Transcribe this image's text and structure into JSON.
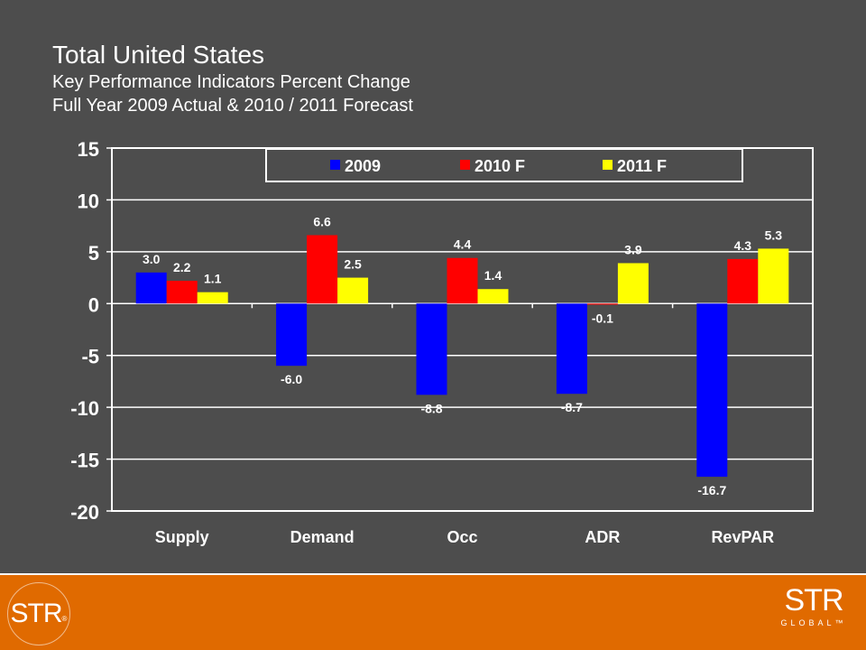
{
  "header": {
    "title": "Total United States",
    "subtitle_1": "Key Performance Indicators Percent Change",
    "subtitle_2": "Full Year 2009 Actual & 2010 / 2011 Forecast"
  },
  "chart_data": {
    "type": "bar",
    "categories": [
      "Supply",
      "Demand",
      "Occ",
      "ADR",
      "RevPAR"
    ],
    "series": [
      {
        "name": "2009",
        "color": "#0000ff",
        "values": [
          3.0,
          -6.0,
          -8.8,
          -8.7,
          -16.7
        ],
        "labels": [
          "3.0",
          "-6.0",
          "-8.8",
          "-8.7",
          "-16.7"
        ]
      },
      {
        "name": "2010 F",
        "color": "#ff0000",
        "values": [
          2.2,
          6.6,
          4.4,
          -0.1,
          4.3
        ],
        "labels": [
          "2.2",
          "6.6",
          "4.4",
          "-0.1",
          "4.3"
        ]
      },
      {
        "name": "2011 F",
        "color": "#ffff00",
        "values": [
          1.1,
          2.5,
          1.4,
          3.9,
          5.3
        ],
        "labels": [
          "1.1",
          "2.5",
          "1.4",
          "3.9",
          "5.3"
        ]
      }
    ],
    "ylim": [
      -20,
      15
    ],
    "yticks": [
      15,
      10,
      5,
      0,
      -5,
      -10,
      -15,
      -20
    ],
    "grid": true,
    "legend_position": "top"
  },
  "footer": {
    "logo_left": "STR",
    "logo_left_mark": "®",
    "logo_right": "STR",
    "logo_right_sub": "GLOBAL",
    "logo_right_mark": "™",
    "color": "#e06a00"
  }
}
